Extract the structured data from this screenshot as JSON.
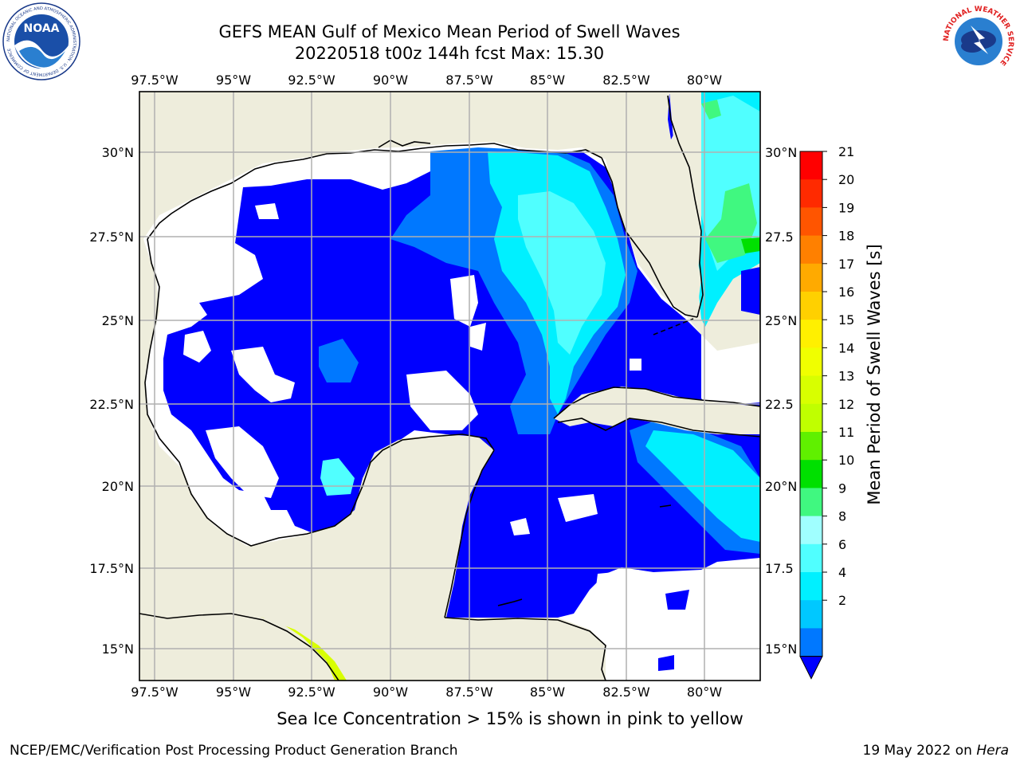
{
  "header": {
    "title_line1": "GEFS MEAN Gulf of Mexico Mean Period of Swell Waves",
    "title_line2": "20220518 t00z 144h fcst   Max: 15.30"
  },
  "logos": {
    "noaa_text": "NOAA",
    "noaa_ring": "NATIONAL OCEANIC AND ATMOSPHERIC ADMINISTRATION · U.S. DEPARTMENT OF COMMERCE",
    "nws_ring": "NATIONAL WEATHER SERVICE"
  },
  "map": {
    "lon_labels": [
      "97.5°W",
      "95°W",
      "92.5°W",
      "90°W",
      "87.5°W",
      "85°W",
      "82.5°W",
      "80°W"
    ],
    "lat_labels_left": [
      "30°N",
      "27.5°N",
      "25°N",
      "22.5°N",
      "20°N",
      "17.5°N",
      "15°N"
    ],
    "lat_labels_right": [
      "30°N",
      "27.5",
      "25°N",
      "22.5",
      "20°N",
      "17.5",
      "15°N"
    ],
    "colors": {
      "land": "#eeeddc",
      "no_data": "#ffffff",
      "grid": "#b0b0b0",
      "coast": "#000000"
    }
  },
  "colorbar": {
    "title": "Mean Period of Swell Waves [s]",
    "labels": [
      "21",
      "20",
      "19",
      "18",
      "17",
      "16",
      "15",
      "14",
      "13",
      "12",
      "11",
      "10",
      "9",
      "8",
      "6",
      "4",
      "2"
    ],
    "colors": [
      "#ff0000",
      "#ff2a00",
      "#ff5500",
      "#ff8000",
      "#ffaa00",
      "#ffd000",
      "#fff000",
      "#f0ff00",
      "#d8ff00",
      "#c0ff00",
      "#60f000",
      "#00e000",
      "#40f880",
      "#a0ffff",
      "#50ffff",
      "#00f0ff",
      "#00c8ff",
      "#0078ff",
      "#0000ff"
    ]
  },
  "caption": "Sea Ice Concentration > 15% is shown in pink to yellow",
  "footer": {
    "left": "NCEP/EMC/Verification Post Processing Product Generation Branch",
    "right_date": "19 May 2022 on ",
    "right_host": "Hera"
  }
}
